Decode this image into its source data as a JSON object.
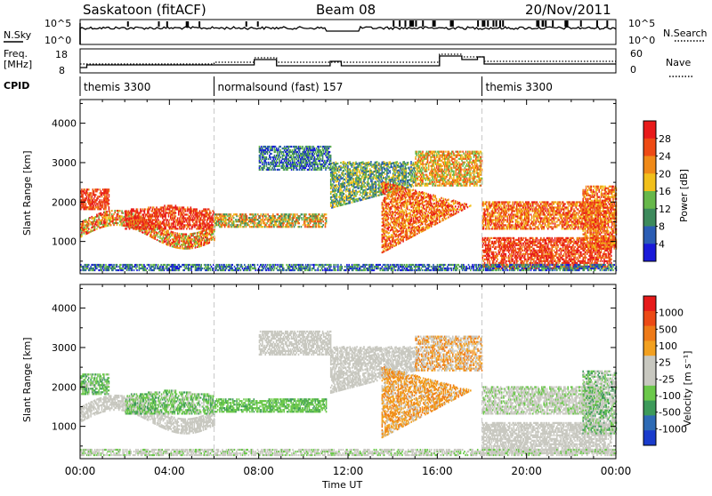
{
  "header": {
    "station": "Saskatoon (fitACF)",
    "beam": "Beam 08",
    "date": "20/Nov/2011"
  },
  "top_panels": {
    "nsky_label": "N.Sky",
    "nsky_ticks": [
      "10^5",
      "10^0"
    ],
    "nsearch_label": "N.Search",
    "nsearch_ticks": [
      "10^5",
      "10^0"
    ],
    "freq_label_1": "Freq.",
    "freq_label_2": "[MHz]",
    "freq_ticks": [
      "18",
      "8"
    ],
    "nave_label": "Nave",
    "nave_ticks": [
      "60",
      "0"
    ],
    "cpid_label": "CPID",
    "cpid_segments": [
      {
        "label": "themis 3300",
        "start": 0,
        "end": 6
      },
      {
        "label": "normalsound (fast) 157",
        "start": 6,
        "end": 18
      },
      {
        "label": "themis 3300",
        "start": 18,
        "end": 24
      }
    ]
  },
  "chart_data": [
    {
      "type": "heatmap",
      "panel": "power",
      "ylabel": "Slant Range [km]",
      "ylim": [
        180,
        4600
      ],
      "yticks": [
        1000,
        2000,
        3000,
        4000
      ],
      "xlim": [
        0,
        24
      ],
      "colorbar_label": "Power [dB]",
      "colorbar_ticks": [
        "4",
        "8",
        "12",
        "16",
        "20",
        "24",
        "28"
      ],
      "colors": [
        "#1a1ad9",
        "#2b5db4",
        "#3d8a5c",
        "#67b84a",
        "#f2c01b",
        "#f08a18",
        "#ee4a14",
        "#e81a1a"
      ]
    },
    {
      "type": "heatmap",
      "panel": "velocity",
      "ylabel": "Slant Range [km]",
      "ylim": [
        180,
        4600
      ],
      "yticks": [
        1000,
        2000,
        3000,
        4000
      ],
      "xlim": [
        0,
        24
      ],
      "xlabel": "Time UT",
      "xticks": [
        "00:00",
        "04:00",
        "08:00",
        "12:00",
        "16:00",
        "20:00",
        "00:00"
      ],
      "colorbar_label": "Velocity [m s⁻¹]",
      "colorbar_ticks": [
        "1000",
        "500",
        "100",
        "25",
        "-25",
        "-100",
        "-500",
        "-1000"
      ],
      "colors": [
        "#1a3ccc",
        "#2e6bb5",
        "#3d9a5a",
        "#6bc84a",
        "#c8c8c0",
        "#c8c8c0",
        "#f2a020",
        "#ee7a18",
        "#ec4a16",
        "#e61a1a"
      ]
    }
  ]
}
